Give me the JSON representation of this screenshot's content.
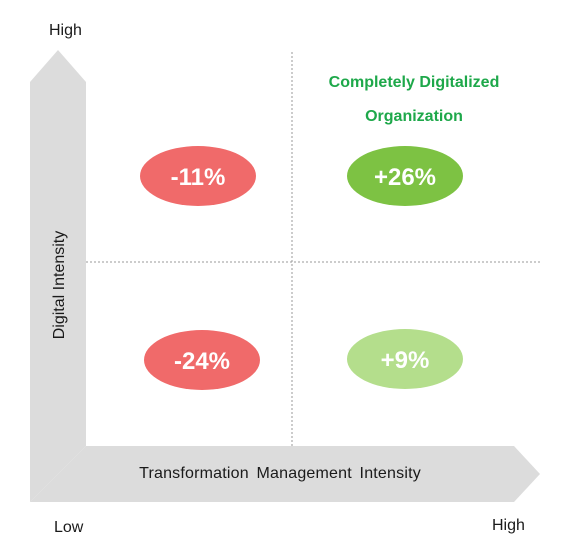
{
  "axes": {
    "y_high": "High",
    "x_low": "Low",
    "x_high": "High",
    "x_axis_label": "Transformation Management Intensity",
    "y_axis_label": "Digital Intensity"
  },
  "highlight": {
    "line1": "Completely Digitalized",
    "line2": "Organization",
    "color": "#1ea84a"
  },
  "quadrants": [
    {
      "id": "top-left",
      "value": "-11%",
      "color": "#f06a6a"
    },
    {
      "id": "top-right",
      "value": "+26%",
      "color": "#7dc243"
    },
    {
      "id": "bottom-left",
      "value": "-24%",
      "color": "#f06a6a"
    },
    {
      "id": "bottom-right",
      "value": "+9%",
      "color": "#b4de8c"
    }
  ],
  "colors": {
    "arrow": "#dcdcdc",
    "divider": "#9a9a9a"
  }
}
